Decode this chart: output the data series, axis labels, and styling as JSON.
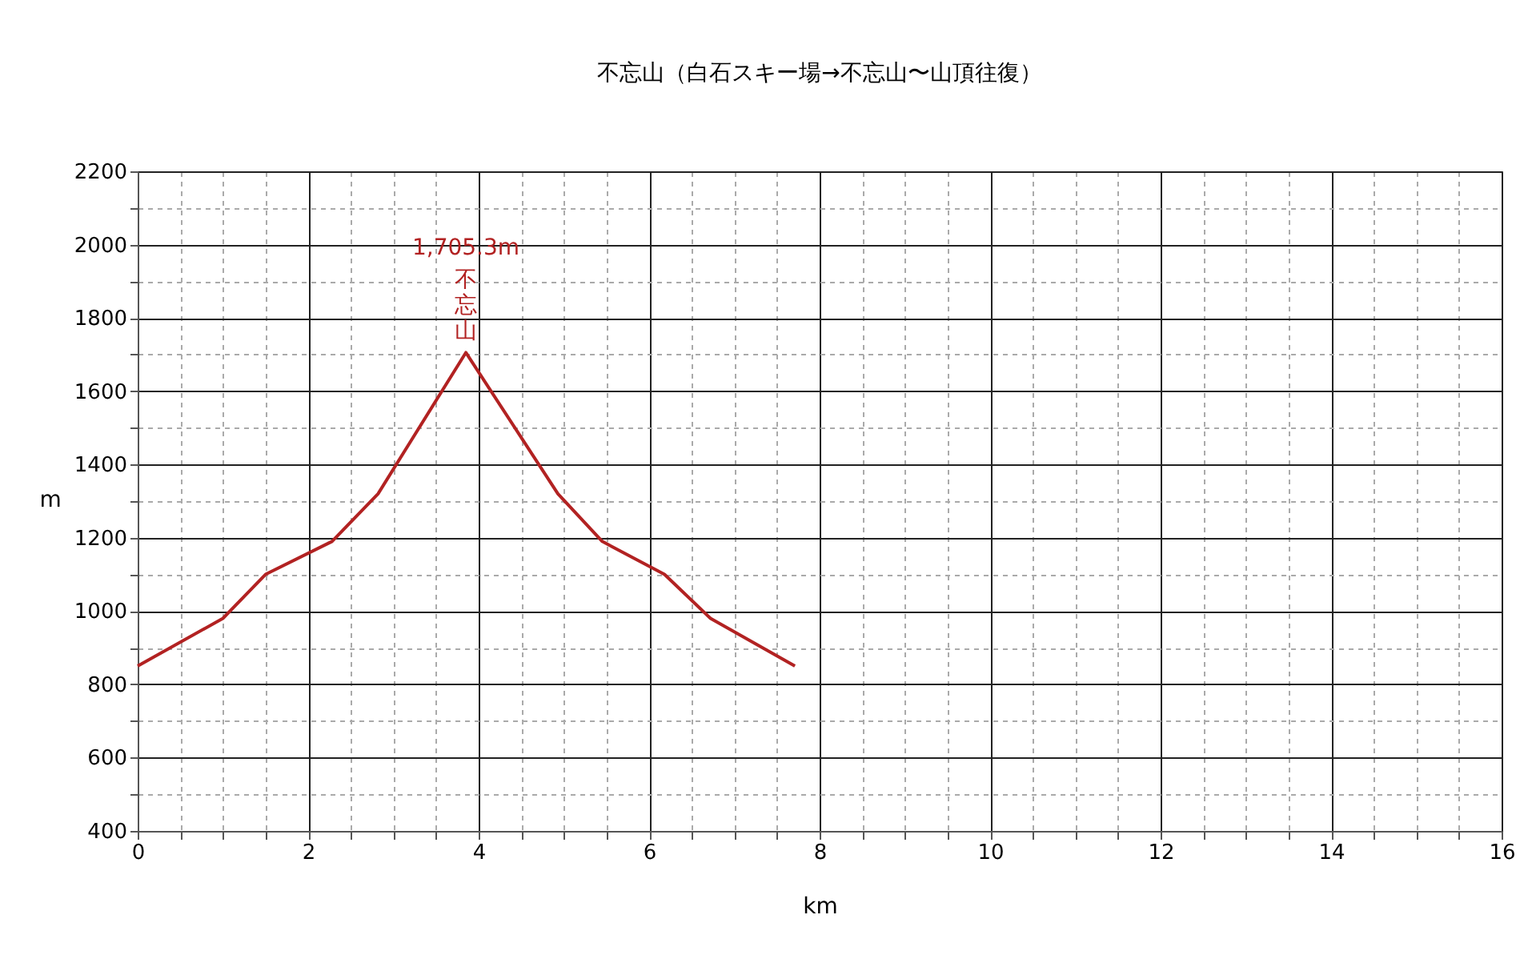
{
  "chart_data": {
    "type": "line",
    "title": "不忘山（白石スキー場→不忘山〜山頂往復）",
    "xlabel": "km",
    "ylabel": "m",
    "x": [
      0,
      1.0,
      1.5,
      2.28,
      2.82,
      3.85,
      4.93,
      5.45,
      6.18,
      6.72,
      7.71
    ],
    "series": [
      {
        "color": "#b22222",
        "values": [
          850,
          980,
          1100,
          1190,
          1320,
          1705.3,
          1320,
          1190,
          1100,
          980,
          850
        ]
      }
    ],
    "xlim": [
      0,
      16
    ],
    "ylim": [
      400,
      2200
    ],
    "xticks": [
      0,
      {
        "value": 0.5,
        "label": null
      },
      {
        "value": 1,
        "label": null
      },
      {
        "value": 1.5,
        "label": null
      },
      2,
      {
        "value": 2.5,
        "label": null
      },
      {
        "value": 3,
        "label": null
      },
      {
        "value": 3.5,
        "label": null
      },
      4,
      {
        "value": 4.5,
        "label": null
      },
      {
        "value": 5,
        "label": null
      },
      {
        "value": 5.5,
        "label": null
      },
      6,
      {
        "value": 6.5,
        "label": null
      },
      {
        "value": 7,
        "label": null
      },
      {
        "value": 7.5,
        "label": null
      },
      8,
      {
        "value": 8.5,
        "label": null
      },
      {
        "value": 9,
        "label": null
      },
      {
        "value": 9.5,
        "label": null
      },
      10,
      {
        "value": 10.5,
        "label": null
      },
      {
        "value": 11,
        "label": null
      },
      {
        "value": 11.5,
        "label": null
      },
      12,
      {
        "value": 12.5,
        "label": null
      },
      {
        "value": 13,
        "label": null
      },
      {
        "value": 13.5,
        "label": null
      },
      14,
      {
        "value": 14.5,
        "label": null
      },
      {
        "value": 15,
        "label": null
      },
      {
        "value": 15.5,
        "label": null
      },
      16
    ],
    "yticks": [
      400,
      {
        "value": 500,
        "label": null
      },
      600,
      {
        "value": 700,
        "label": null
      },
      800,
      {
        "value": 900,
        "label": null
      },
      1000,
      {
        "value": 1100,
        "label": null
      },
      1200,
      {
        "value": 1300,
        "label": null
      },
      1400,
      {
        "value": 1500,
        "label": null
      },
      1600,
      {
        "value": 1700,
        "label": null
      },
      1800,
      {
        "value": 1900,
        "label": null
      },
      2000,
      {
        "value": 2100,
        "label": null
      },
      2200
    ],
    "grid": true,
    "marker": "none",
    "line_style": "solid",
    "annotations": [
      "1,705.3m",
      {
        "text": "不忘山",
        "x": 3.85,
        "y": 1705.3
      }
    ]
  }
}
